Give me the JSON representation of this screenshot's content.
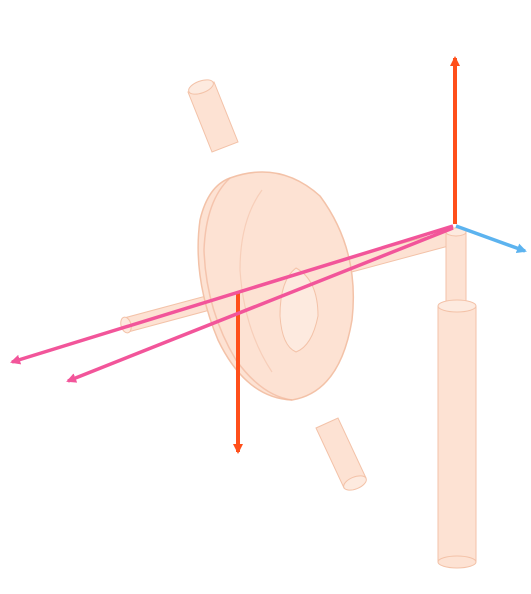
{
  "diagram": {
    "background": "#ffffff",
    "colors": {
      "part_fill": "#fde2d3",
      "part_fill_light": "#fdeadf",
      "part_edge": "#f3c2a8",
      "part_shadow": "#f1b89c",
      "force_arrow": "#ff4f1a",
      "direction_arrow": "#f2559a",
      "axis_arrow": "#5cb3ef"
    },
    "parts": [
      "rotor-disc",
      "axle",
      "upper-axle-stub",
      "lower-axle-stub",
      "support-post"
    ],
    "arrows": [
      "vertical-up-force-arrow",
      "vertical-down-force-arrow",
      "pink-direction-arrow-1",
      "pink-direction-arrow-2",
      "blue-axis-arrow"
    ]
  }
}
